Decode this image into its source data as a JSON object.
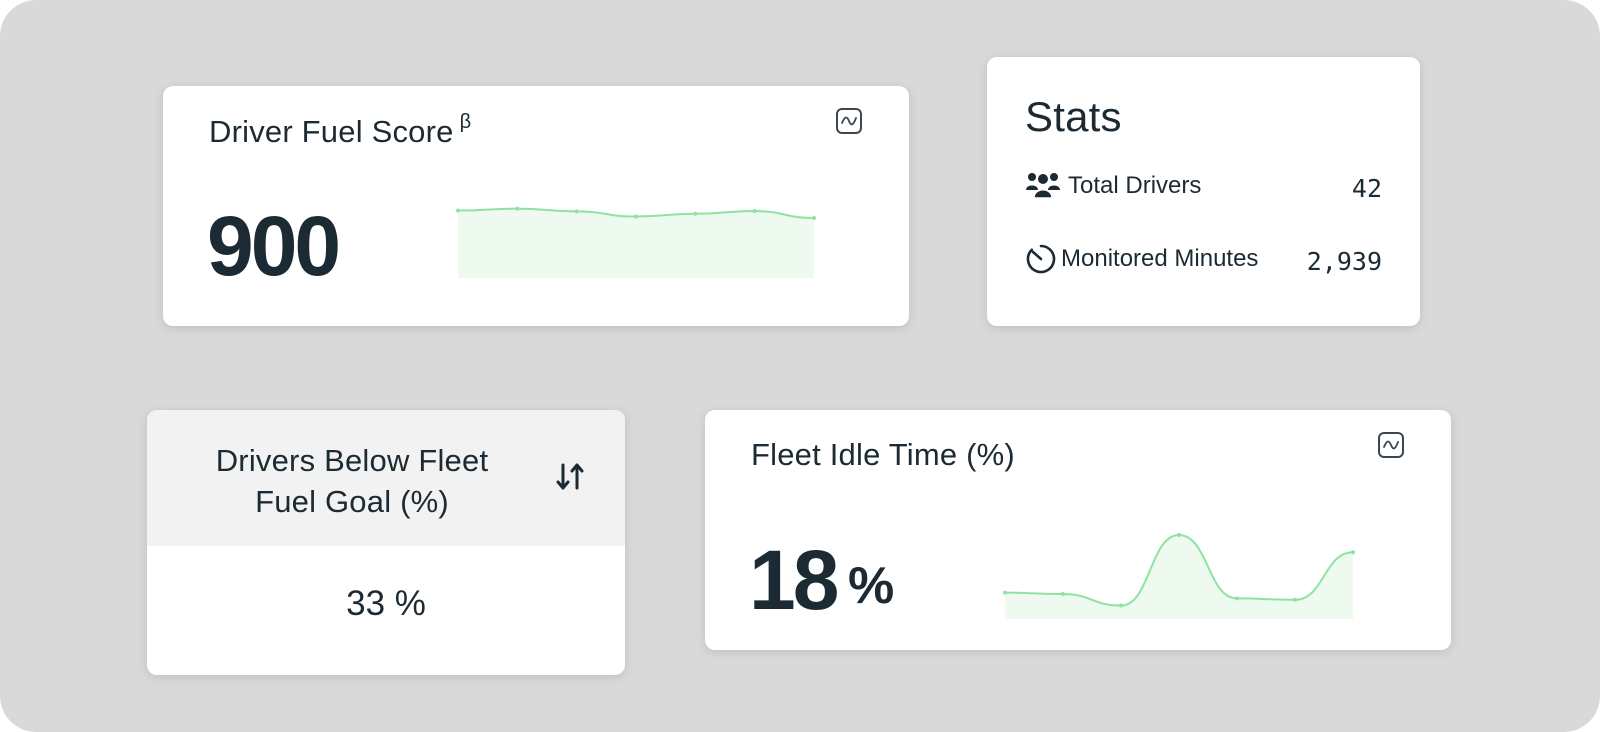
{
  "fuel_score": {
    "title": "Driver Fuel Score",
    "beta_mark": "β",
    "value": "900",
    "chart_icon": "line-chart-icon",
    "trend": [
      0.62,
      0.78,
      0.55,
      0.12,
      0.35,
      0.58,
      0.0
    ]
  },
  "stats": {
    "title": "Stats",
    "rows": [
      {
        "icon": "users-icon",
        "label": "Total Drivers",
        "value": "42"
      },
      {
        "icon": "timer-icon",
        "label": "Monitored Minutes",
        "value": "2,939"
      }
    ]
  },
  "below_goal": {
    "title_line1": "Drivers Below Fleet",
    "title_line2": "Fuel Goal (%)",
    "sort_icon": "sort-arrows-icon",
    "value": "33 %"
  },
  "idle_time": {
    "title": "Fleet Idle Time (%)",
    "value": "18",
    "unit": "%",
    "chart_icon": "line-chart-icon",
    "trend": [
      0.2,
      0.18,
      0.02,
      1.0,
      0.12,
      0.1,
      0.76
    ]
  },
  "colors": {
    "spark_line": "#8ee3a2",
    "spark_fill": "#eef9ef",
    "background": "#d9d9d9"
  }
}
